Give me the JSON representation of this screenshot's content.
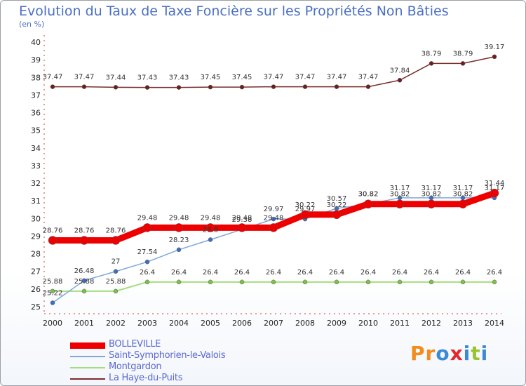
{
  "title": "Evolution du Taux de Taxe Foncière sur les Propriétés Non Bâties",
  "subtitle": "(en %)",
  "logo": {
    "text": "Proxiti",
    "colors": [
      "#f28c1e",
      "#3a8ad6",
      "#e3262a",
      "#9ac32c"
    ]
  },
  "chart_data": {
    "type": "line",
    "title": "Evolution du Taux de Taxe Foncière sur les Propriétés Non Bâties",
    "ylabel": "(en %)",
    "x": [
      2000,
      2001,
      2002,
      2003,
      2004,
      2005,
      2006,
      2007,
      2008,
      2009,
      2010,
      2011,
      2012,
      2013,
      2014
    ],
    "ylim": [
      25,
      40
    ],
    "yticks": [
      25,
      26,
      27,
      28,
      29,
      30,
      31,
      32,
      33,
      34,
      35,
      36,
      37,
      38,
      39,
      40
    ],
    "grid": false,
    "legend": "bottom-left",
    "series": [
      {
        "name": "La Haye-du-Puits",
        "color": "#7a2e2e",
        "dot": "#6b1f1f",
        "width": 1.5,
        "r": 3,
        "labels": true,
        "values": [
          37.47,
          37.47,
          37.44,
          37.43,
          37.43,
          37.45,
          37.45,
          37.47,
          37.47,
          37.47,
          37.47,
          37.84,
          38.79,
          38.79,
          39.17
        ]
      },
      {
        "name": "Montgardon",
        "color": "#a6dd80",
        "dot": "#7cc24a",
        "width": 2,
        "r": 3,
        "labels": true,
        "values": [
          25.88,
          25.88,
          25.88,
          26.4,
          26.4,
          26.4,
          26.4,
          26.4,
          26.4,
          26.4,
          26.4,
          26.4,
          26.4,
          26.4,
          26.4
        ]
      },
      {
        "name": "Saint-Symphorien-le-Valois",
        "color": "#7fa8d9",
        "dot": "#3c6fc2",
        "width": 1.5,
        "r": 3,
        "labels": true,
        "values": [
          25.22,
          26.48,
          27,
          27.54,
          28.23,
          28.8,
          29.38,
          29.97,
          29.97,
          30.57,
          30.82,
          31.17,
          31.17,
          31.17,
          31.17
        ]
      },
      {
        "name": "BOLLEVILLE",
        "color": "#ee0000",
        "dot": "#ee0000",
        "width": 9,
        "r": 6,
        "labels": true,
        "values": [
          28.76,
          28.76,
          28.76,
          29.48,
          29.48,
          29.48,
          29.48,
          29.48,
          30.22,
          30.22,
          30.82,
          30.82,
          30.82,
          30.82,
          31.44
        ]
      }
    ]
  },
  "legend_items": [
    {
      "name": "BOLLEVILLE",
      "color": "#ee0000",
      "thick": 9
    },
    {
      "name": "Saint-Symphorien-le-Valois",
      "color": "#7fa8d9",
      "thick": 2
    },
    {
      "name": "Montgardon",
      "color": "#a6dd80",
      "thick": 2
    },
    {
      "name": "La Haye-du-Puits",
      "color": "#7a2e2e",
      "thick": 2
    }
  ]
}
